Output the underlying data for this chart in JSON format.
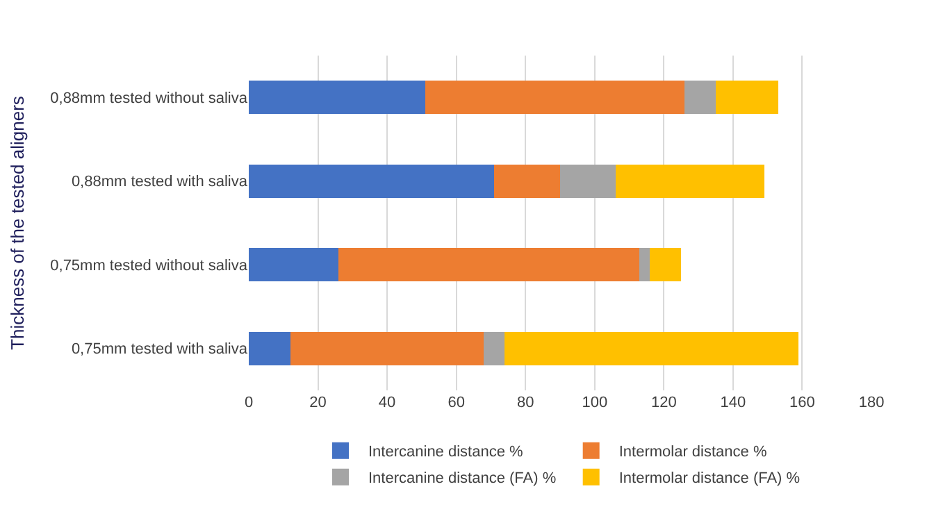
{
  "chart_data": {
    "type": "bar",
    "orientation": "horizontal",
    "stacked": true,
    "ylabel": "Thickness of the tested aligners",
    "categories": [
      "0,88mm tested without saliva",
      "0,88mm tested with saliva",
      "0,75mm tested without saliva",
      "0,75mm tested with saliva"
    ],
    "series": [
      {
        "name": "Intercanine distance %",
        "color": "#4472c4",
        "values": [
          51,
          71,
          26,
          12
        ]
      },
      {
        "name": "Intermolar distance %",
        "color": "#ed7d31",
        "values": [
          75,
          19,
          87,
          56
        ]
      },
      {
        "name": "Intercanine distance (FA) %",
        "color": "#a5a5a5",
        "values": [
          9,
          16,
          3,
          6
        ]
      },
      {
        "name": "Intermolar distance (FA) %",
        "color": "#ffc000",
        "values": [
          18,
          43,
          9,
          85
        ]
      }
    ],
    "xlim": [
      0,
      180
    ],
    "xticks": [
      0,
      20,
      40,
      60,
      80,
      100,
      120,
      140,
      160,
      180
    ],
    "grid": "x",
    "legend": "bottom"
  }
}
